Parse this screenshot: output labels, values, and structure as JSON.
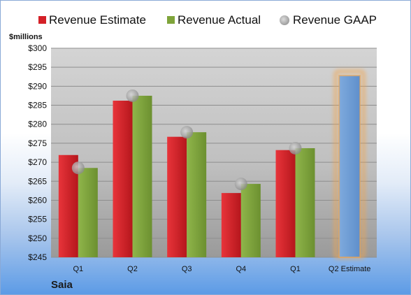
{
  "company_name": "Saia",
  "chart_data": {
    "type": "bar",
    "ylabel": "$millions",
    "ylim": [
      245,
      300
    ],
    "yticks": [
      245,
      250,
      255,
      260,
      265,
      270,
      275,
      280,
      285,
      290,
      295,
      300
    ],
    "ytick_prefix": "$",
    "categories": [
      "Q1",
      "Q2",
      "Q3",
      "Q4",
      "Q1",
      "Q2 Estimate"
    ],
    "legend_position": "top",
    "grid": true,
    "series": [
      {
        "name": "Revenue Estimate",
        "mark": "bar",
        "color": "#d42027",
        "values": [
          271.9,
          286.2,
          276.7,
          261.9,
          273.2,
          null
        ]
      },
      {
        "name": "Revenue Actual",
        "mark": "bar",
        "color": "#7fa43a",
        "values": [
          268.5,
          287.5,
          277.9,
          264.3,
          273.7,
          null
        ]
      },
      {
        "name": "Revenue GAAP",
        "mark": "point",
        "color": "#a7a7a7",
        "values": [
          268.5,
          287.5,
          277.9,
          264.3,
          273.7,
          null
        ]
      },
      {
        "name": "",
        "mark": "bar",
        "color": "#6f9fd8",
        "highlight": "#f3a64d",
        "values": [
          null,
          null,
          null,
          null,
          null,
          292.8
        ]
      }
    ]
  }
}
